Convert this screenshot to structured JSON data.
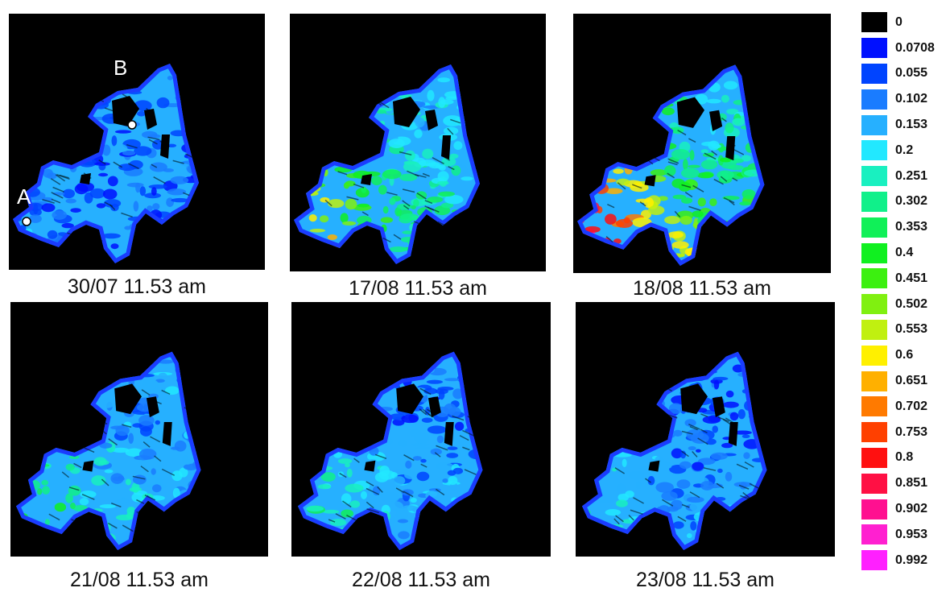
{
  "panels": [
    {
      "caption": "30/07 11.53 am",
      "level": 0.15
    },
    {
      "caption": "17/08 11.53 am",
      "level": 0.62
    },
    {
      "caption": "18/08 11.53 am",
      "level": 0.85
    },
    {
      "caption": "21/08 11.53 am",
      "level": 0.42
    },
    {
      "caption": "22/08 11.53 am",
      "level": 0.35
    },
    {
      "caption": "23/08 11.53 am",
      "level": 0.28
    }
  ],
  "point_labels": {
    "a": "A",
    "b": "B"
  },
  "legend": [
    {
      "label": "0",
      "color": "#000000"
    },
    {
      "label": "0.0708",
      "color": "#0010ff"
    },
    {
      "label": "0.055",
      "color": "#0044ff"
    },
    {
      "label": "0.102",
      "color": "#1a7cff"
    },
    {
      "label": "0.153",
      "color": "#26b0ff"
    },
    {
      "label": "0.2",
      "color": "#22e8ff"
    },
    {
      "label": "0.251",
      "color": "#19f0c0"
    },
    {
      "label": "0.302",
      "color": "#10f08a"
    },
    {
      "label": "0.353",
      "color": "#10f058"
    },
    {
      "label": "0.4",
      "color": "#10f020"
    },
    {
      "label": "0.451",
      "color": "#3cf010"
    },
    {
      "label": "0.502",
      "color": "#80f010"
    },
    {
      "label": "0.553",
      "color": "#c0f010"
    },
    {
      "label": "0.6",
      "color": "#fff000"
    },
    {
      "label": "0.651",
      "color": "#ffb000"
    },
    {
      "label": "0.702",
      "color": "#ff7a00"
    },
    {
      "label": "0.753",
      "color": "#ff4000"
    },
    {
      "label": "0.8",
      "color": "#ff1010"
    },
    {
      "label": "0.851",
      "color": "#ff1044"
    },
    {
      "label": "0.902",
      "color": "#ff1090"
    },
    {
      "label": "0.953",
      "color": "#ff20d0"
    },
    {
      "label": "0.992",
      "color": "#ff20ff"
    }
  ]
}
